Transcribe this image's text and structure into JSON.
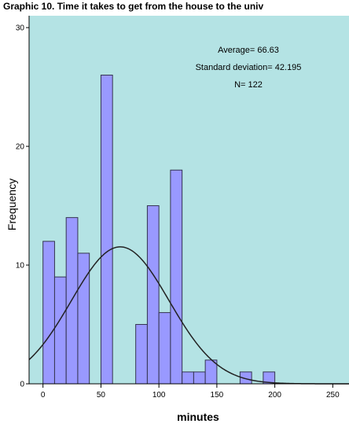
{
  "chart_data": {
    "type": "bar",
    "title": "Graphic 10. Time it takes to get from the house to the univ",
    "xlabel": "minutes",
    "ylabel": "Frequency",
    "xlim": [
      -12,
      264
    ],
    "ylim": [
      0,
      31
    ],
    "x_ticks": [
      0,
      50,
      100,
      150,
      200,
      250
    ],
    "y_ticks": [
      0,
      10,
      20,
      30
    ],
    "bin_width": 10,
    "bins": [
      {
        "start": 0,
        "end": 10,
        "count": 12
      },
      {
        "start": 10,
        "end": 20,
        "count": 9
      },
      {
        "start": 20,
        "end": 30,
        "count": 14
      },
      {
        "start": 30,
        "end": 40,
        "count": 11
      },
      {
        "start": 40,
        "end": 50,
        "count": 0
      },
      {
        "start": 50,
        "end": 60,
        "count": 26
      },
      {
        "start": 60,
        "end": 70,
        "count": 0
      },
      {
        "start": 70,
        "end": 80,
        "count": 0
      },
      {
        "start": 80,
        "end": 90,
        "count": 5
      },
      {
        "start": 90,
        "end": 100,
        "count": 15
      },
      {
        "start": 100,
        "end": 110,
        "count": 6
      },
      {
        "start": 110,
        "end": 120,
        "count": 18
      },
      {
        "start": 120,
        "end": 130,
        "count": 1
      },
      {
        "start": 130,
        "end": 140,
        "count": 1
      },
      {
        "start": 140,
        "end": 150,
        "count": 2
      },
      {
        "start": 150,
        "end": 160,
        "count": 0
      },
      {
        "start": 160,
        "end": 170,
        "count": 0
      },
      {
        "start": 170,
        "end": 180,
        "count": 1
      },
      {
        "start": 180,
        "end": 190,
        "count": 0
      },
      {
        "start": 190,
        "end": 200,
        "count": 1
      }
    ],
    "normal_curve": {
      "mean": 66.63,
      "sd": 42.195,
      "n": 122
    },
    "annotations": [
      "Average= 66.63",
      "Standard deviation= 42.195",
      "N= 122"
    ],
    "colors": {
      "plot_background": "#b4e3e4",
      "bar_fill": "#9999ff",
      "bar_stroke": "#34344f",
      "curve": "#222222",
      "axis": "#000000"
    }
  }
}
